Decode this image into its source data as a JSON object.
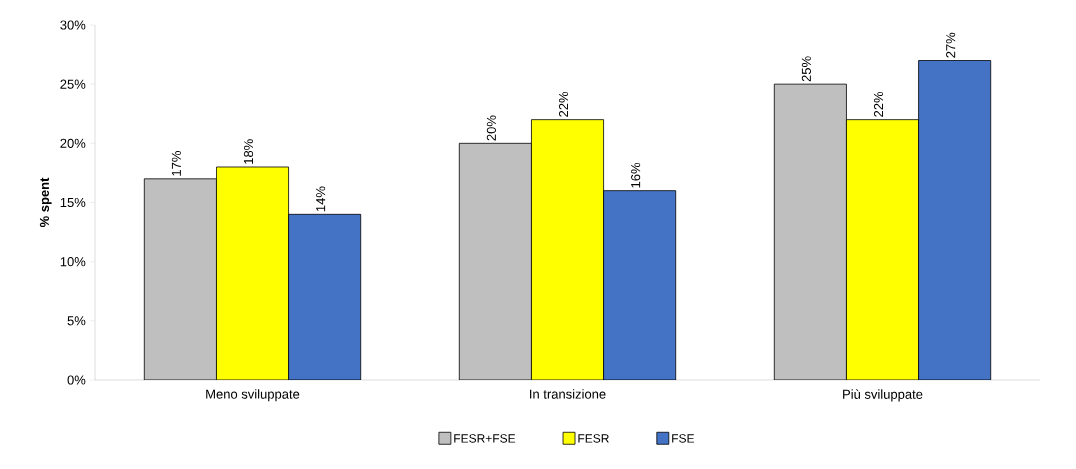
{
  "chart_data": {
    "type": "bar",
    "ylabel": "% spent",
    "categories": [
      "Meno sviluppate",
      "In transizione",
      "Più sviluppate"
    ],
    "series": [
      {
        "name": "FESR+FSE",
        "color": "#bfbfbf",
        "values": [
          17,
          20,
          25
        ],
        "value_labels": [
          "17%",
          "20%",
          "25%"
        ]
      },
      {
        "name": "FESR",
        "color": "#ffff00",
        "values": [
          18,
          22,
          22
        ],
        "value_labels": [
          "18%",
          "22%",
          "22%"
        ]
      },
      {
        "name": "FSE",
        "color": "#4472c4",
        "values": [
          14,
          16,
          27
        ],
        "value_labels": [
          "14%",
          "16%",
          "27%"
        ]
      }
    ],
    "ylim": [
      0,
      30
    ],
    "yticks": [
      {
        "value": 0,
        "label": "0%"
      },
      {
        "value": 5,
        "label": "5%"
      },
      {
        "value": 10,
        "label": "10%"
      },
      {
        "value": 15,
        "label": "15%"
      },
      {
        "value": 20,
        "label": "20%"
      },
      {
        "value": 25,
        "label": "25%"
      },
      {
        "value": 30,
        "label": "30%"
      }
    ],
    "grid": false,
    "legend": "bottom"
  }
}
